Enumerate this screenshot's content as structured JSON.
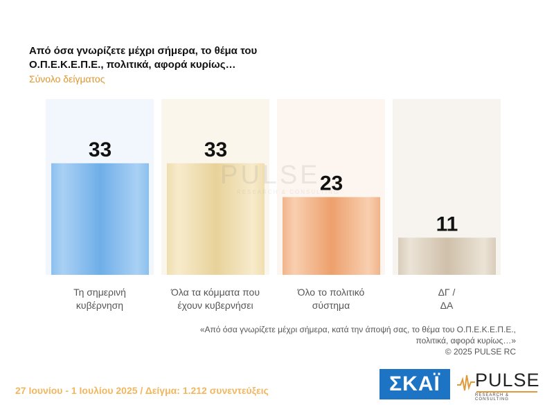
{
  "title": "Από όσα γνωρίζετε μέχρι σήμερα, το θέμα του  Ο.Π.Ε.Κ.Ε.Π.Ε.,  πολιτικά, αφορά κυρίως…",
  "subtitle": "Σύνολο δείγματος",
  "watermark": {
    "name": "PULSE",
    "sub": "RESEARCH & CONSULTING"
  },
  "footnote": {
    "line1": "«Από όσα γνωρίζετε μέχρι σήμερα, κατά την άποψή σας, το θέμα του Ο.Π.Ε.Κ.Ε.Π.Ε.,",
    "line2": "πολιτικά, αφορά κυρίως…»",
    "line3": "©  2025  PULSE RC"
  },
  "footer": {
    "text": "27 Ιουνίου - 1 Ιουλίου 2025  /  Δείγμα:  1.212 συνεντεύξεις"
  },
  "logos": {
    "skai": "ΣΚΑΪ",
    "pulse_name": "PULSE",
    "pulse_sub": "RESEARCH & CONSULTING"
  },
  "chart_data": {
    "type": "bar",
    "categories": [
      [
        "Τη σημερινή",
        "κυβέρνηση"
      ],
      [
        "Όλα τα κόμματα που",
        "έχουν κυβερνήσει"
      ],
      [
        "Όλο το πολιτικό",
        "σύστημα"
      ],
      [
        "ΔΓ /",
        "ΔΑ"
      ]
    ],
    "values": [
      33,
      33,
      23,
      11
    ],
    "ylim": [
      0,
      52
    ],
    "colors": {
      "bars": [
        "#7cb6ea",
        "#ecd9a6",
        "#eea878",
        "#d4c6b2"
      ],
      "backgrounds": [
        "#f1f7fd",
        "#fbf6eb",
        "#fdf5ef",
        "#f7f4ef"
      ]
    },
    "grid": false,
    "legend": "none"
  }
}
